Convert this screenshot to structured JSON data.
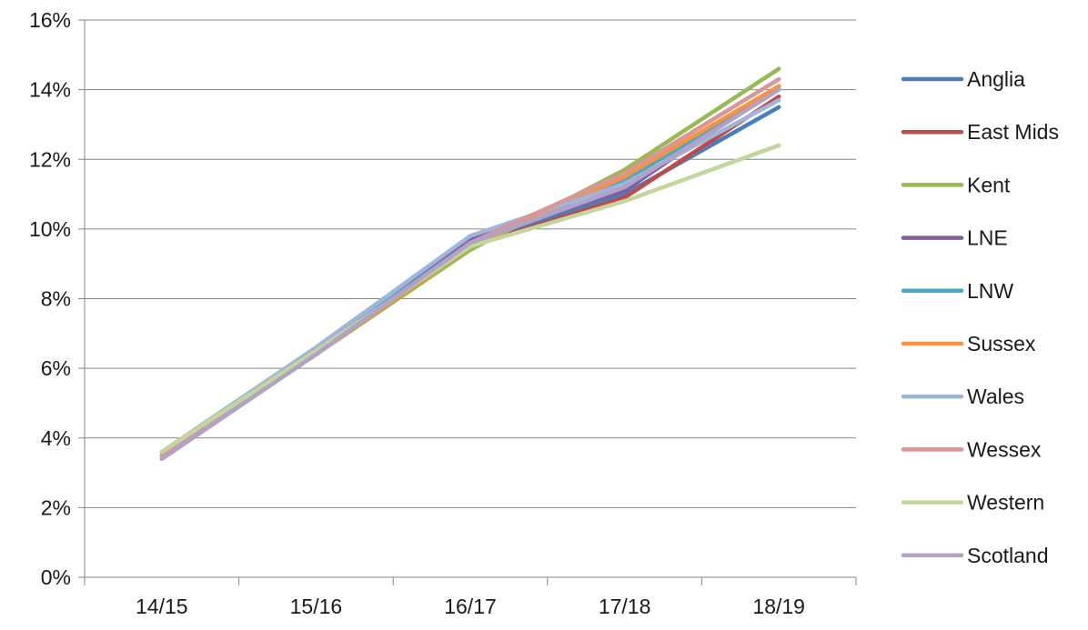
{
  "chart_data": {
    "type": "line",
    "title": "",
    "xlabel": "",
    "ylabel": "",
    "categories": [
      "14/15",
      "15/16",
      "16/17",
      "17/18",
      "18/19"
    ],
    "ylim": [
      0,
      0.16
    ],
    "yticks": [
      0,
      0.02,
      0.04,
      0.06,
      0.08,
      0.1,
      0.12,
      0.14,
      0.16
    ],
    "ytick_labels": [
      "0%",
      "2%",
      "4%",
      "6%",
      "8%",
      "10%",
      "12%",
      "14%",
      "16%"
    ],
    "grid": "horizontal",
    "legend_position": "right",
    "series": [
      {
        "name": "Anglia",
        "color": "#4a7ebb",
        "values": [
          0.035,
          0.065,
          0.096,
          0.11,
          0.135
        ]
      },
      {
        "name": "East Mids",
        "color": "#be4b48",
        "values": [
          0.035,
          0.064,
          0.095,
          0.109,
          0.138
        ]
      },
      {
        "name": "Kent",
        "color": "#98b954",
        "values": [
          0.036,
          0.064,
          0.094,
          0.117,
          0.146
        ]
      },
      {
        "name": "LNE",
        "color": "#7d5fa0",
        "values": [
          0.034,
          0.064,
          0.097,
          0.111,
          0.141
        ]
      },
      {
        "name": "LNW",
        "color": "#46aac5",
        "values": [
          0.035,
          0.065,
          0.096,
          0.114,
          0.14
        ]
      },
      {
        "name": "Sussex",
        "color": "#f69240",
        "values": [
          0.035,
          0.064,
          0.095,
          0.115,
          0.141
        ]
      },
      {
        "name": "Wales",
        "color": "#9eb5dc",
        "values": [
          0.036,
          0.066,
          0.098,
          0.113,
          0.137
        ]
      },
      {
        "name": "Wessex",
        "color": "#d99694",
        "values": [
          0.035,
          0.064,
          0.096,
          0.116,
          0.143
        ]
      },
      {
        "name": "Western",
        "color": "#c3d69b",
        "values": [
          0.036,
          0.065,
          0.095,
          0.108,
          0.124
        ]
      },
      {
        "name": "Scotland",
        "color": "#b3a2c7",
        "values": [
          0.034,
          0.064,
          0.096,
          0.112,
          0.14
        ]
      }
    ]
  }
}
